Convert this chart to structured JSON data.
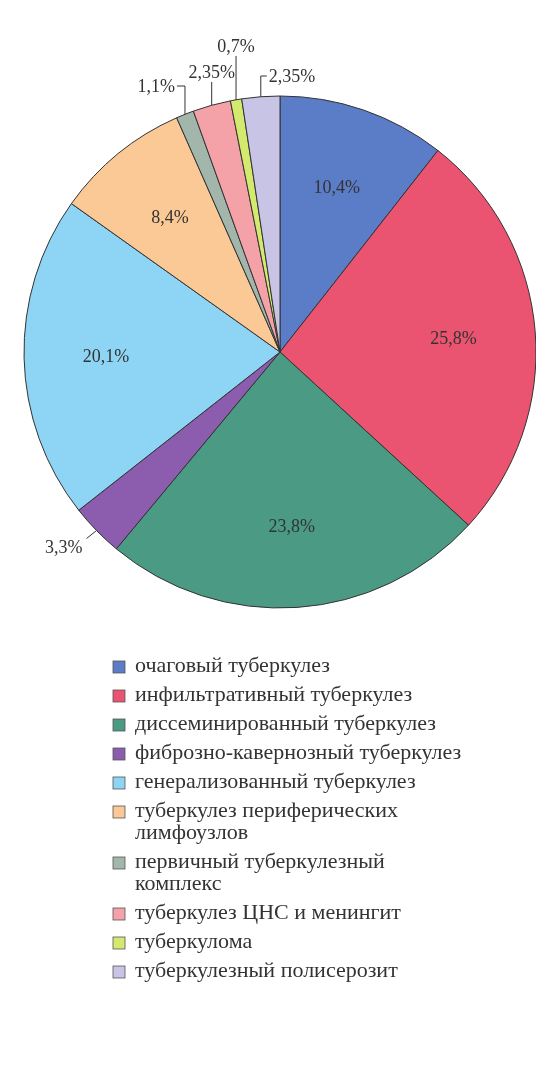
{
  "chart_data": {
    "type": "pie",
    "categories": [
      "очаговый туберкулез",
      "инфильтративный туберкулез",
      "диссеминированный туберкулез",
      "фиброзно-кавернозный туберкулез",
      "генерализованный туберкулез",
      "туберкулез периферических лимфоузлов",
      "первичный туберкулезный комплекс",
      "туберкулез ЦНС и менингит",
      "туберкулома",
      "туберкулезный полисерозит"
    ],
    "values": [
      10.4,
      25.8,
      23.8,
      3.3,
      20.1,
      8.4,
      1.1,
      2.35,
      0.7,
      2.35
    ],
    "value_labels": [
      "10,4%",
      "25,8%",
      "23,8%",
      "3,3%",
      "20,1%",
      "8,4%",
      "1,1%",
      "2,35%",
      "0,7%",
      "2,35%"
    ],
    "colors": [
      "#5b7cc6",
      "#ea5470",
      "#4b9a84",
      "#8c5cae",
      "#8ed4f4",
      "#fbc995",
      "#a2b6ab",
      "#f4a2a8",
      "#d4ea6e",
      "#c8c4e6"
    ],
    "legend": "bottom"
  }
}
